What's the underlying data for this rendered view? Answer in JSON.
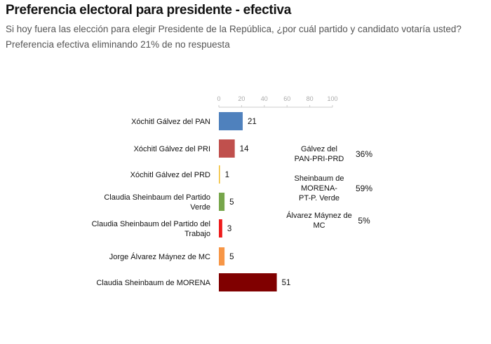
{
  "title": "Preferencia electoral para presidente - efectiva",
  "subtitle": "Si hoy fuera las elección para elegir Presidente de la República, ¿por cuál partido y candidato votaría usted?",
  "note": "Preferencia efectiva eliminando 21% de no respuesta",
  "chart_data": {
    "type": "bar",
    "orientation": "horizontal",
    "categories": [
      [
        "Xóchitl Gálvez del PAN"
      ],
      [
        "Xóchitl Gálvez del PRI"
      ],
      [
        "Xóchitl Gálvez del PRD"
      ],
      [
        "Claudia Sheinbaum del Partido",
        "Verde"
      ],
      [
        "Claudia Sheinbaum del Partido del",
        "Trabajo"
      ],
      [
        "Jorge Álvarez Máynez de MC"
      ],
      [
        "Claudia Sheinbaum de MORENA"
      ]
    ],
    "values": [
      21,
      14,
      1,
      5,
      3,
      5,
      51
    ],
    "colors": [
      "#4f81bd",
      "#c0504d",
      "#f2c037",
      "#77a64b",
      "#ee1c1c",
      "#f79646",
      "#800000"
    ],
    "xlim": [
      0,
      100
    ],
    "xticks": [
      0,
      20,
      40,
      60,
      80,
      100
    ],
    "grid": false
  },
  "summary": [
    {
      "label": [
        "Gálvez del",
        "PAN-PRI-PRD"
      ],
      "value": "36%"
    },
    {
      "label": [
        "Sheinbaum de",
        "MORENA-",
        "PT-P. Verde"
      ],
      "value": "59%"
    },
    {
      "label": [
        "Álvarez Máynez de",
        "MC"
      ],
      "value": "5%"
    }
  ]
}
